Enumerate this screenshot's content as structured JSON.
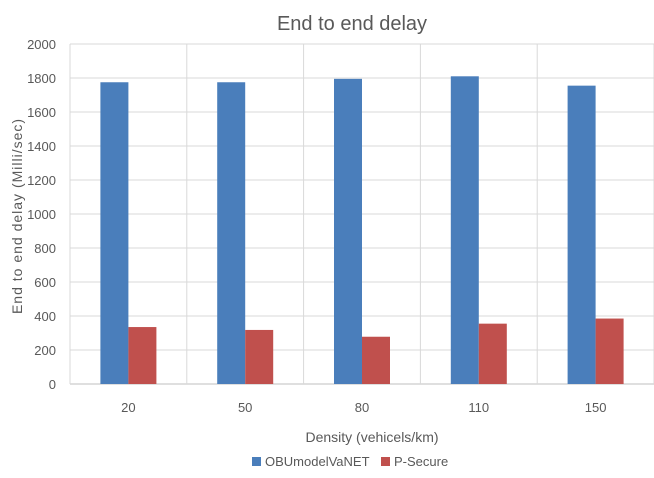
{
  "chart_data": {
    "type": "bar",
    "title": "End to end delay",
    "xlabel": "Density (vehicels/km)",
    "ylabel": "End to end delay (Milli/sec)",
    "categories": [
      "20",
      "50",
      "80",
      "110",
      "150"
    ],
    "series": [
      {
        "name": "OBUmodelVaNET",
        "values": [
          1775,
          1775,
          1795,
          1810,
          1755
        ],
        "color": "#4a7ebb"
      },
      {
        "name": "P-Secure",
        "values": [
          335,
          318,
          278,
          355,
          385
        ],
        "color": "#c0504d"
      }
    ],
    "ylim": [
      0,
      2000
    ],
    "yticks": [
      "0",
      "200",
      "400",
      "600",
      "800",
      "1000",
      "1200",
      "1400",
      "1600",
      "1800",
      "2000"
    ],
    "grid": true,
    "legend_position": "bottom"
  }
}
